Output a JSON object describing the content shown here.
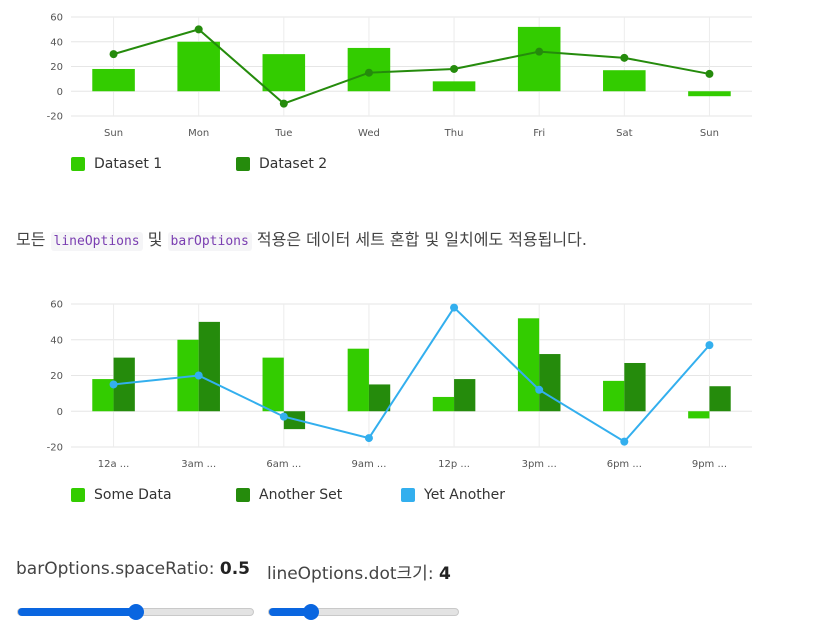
{
  "chart_data": [
    {
      "type": "bar",
      "categories": [
        "Sun",
        "Mon",
        "Tue",
        "Wed",
        "Thu",
        "Fri",
        "Sat",
        "Sun"
      ],
      "y_ticks": [
        "60",
        "40",
        "20",
        "0",
        "-20"
      ],
      "ylim": [
        -20,
        60
      ],
      "grid": true,
      "legend_placement": "bottom-left",
      "series": [
        {
          "name": "Dataset 1",
          "type": "bar",
          "color": "#33cc00",
          "values": [
            18,
            40,
            30,
            35,
            8,
            52,
            17,
            -4
          ]
        },
        {
          "name": "Dataset 2",
          "type": "line",
          "color": "#258b0c",
          "values": [
            30,
            50,
            -10,
            15,
            18,
            32,
            27,
            14
          ]
        }
      ]
    },
    {
      "type": "bar",
      "categories": [
        "12a ...",
        "3am ...",
        "6am ...",
        "9am ...",
        "12p ...",
        "3pm ...",
        "6pm ...",
        "9pm ..."
      ],
      "y_ticks": [
        "60",
        "40",
        "20",
        "0",
        "-20"
      ],
      "ylim": [
        -20,
        60
      ],
      "grid": true,
      "legend_placement": "bottom-left",
      "series": [
        {
          "name": "Some Data",
          "type": "bar",
          "color": "#33cc00",
          "values": [
            18,
            40,
            30,
            35,
            8,
            52,
            17,
            -4
          ]
        },
        {
          "name": "Another Set",
          "type": "bar",
          "color": "#258b0c",
          "values": [
            30,
            50,
            -10,
            15,
            18,
            32,
            27,
            14
          ]
        },
        {
          "name": "Yet Another",
          "type": "line",
          "color": "#33afee",
          "values": [
            15,
            20,
            -3,
            -15,
            58,
            12,
            -17,
            37
          ]
        }
      ]
    }
  ],
  "paragraph": {
    "pre": "모든 ",
    "code1": "lineOptions",
    "mid": " 및 ",
    "code2": "barOptions",
    "post": " 적용은 데이터 세트 혼합 및 일치에도 적용됩니다."
  },
  "controls": {
    "space_ratio_label": "barOptions.spaceRatio:",
    "space_ratio_value": "0.5",
    "space_ratio_fraction": 0.5,
    "dot_size_label": "lineOptions.dot크기:",
    "dot_size_value": "4",
    "dot_size_fraction": 0.22
  }
}
